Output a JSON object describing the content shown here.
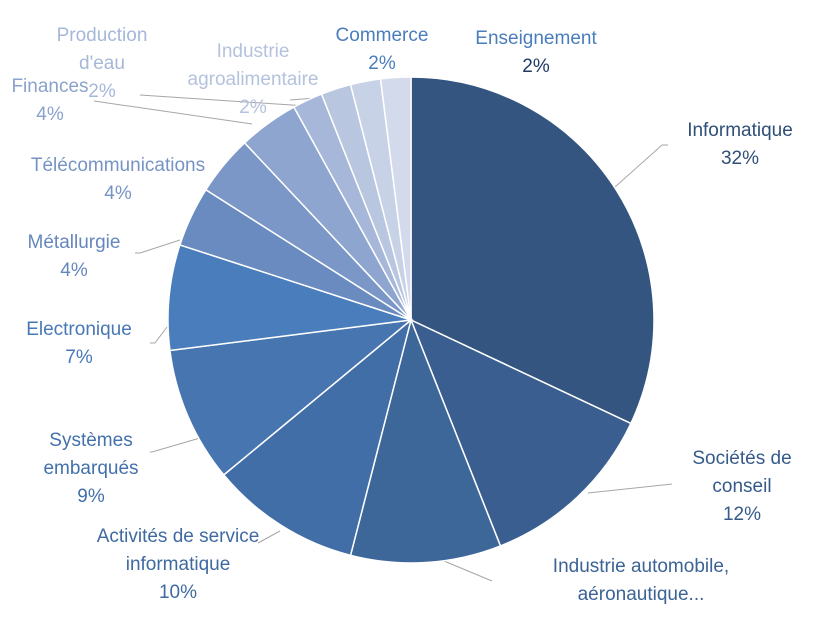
{
  "chart_data": {
    "type": "pie",
    "title": "",
    "legend": "none",
    "slices": [
      {
        "label": [
          "Informatique"
        ],
        "value": 32,
        "pct": "32%",
        "color": "#33557f",
        "text_color": "#2f4f78"
      },
      {
        "label": [
          "Sociétés de",
          "conseil"
        ],
        "value": 12,
        "pct": "12%",
        "color": "#395e8f",
        "text_color": "#365a8a"
      },
      {
        "label": [
          "Industrie automobile,",
          "aéronautique..."
        ],
        "value": 10,
        "pct": "",
        "color": "#3d6699",
        "text_color": "#3b6396"
      },
      {
        "label": [
          "Activités de service",
          "informatique"
        ],
        "value": 10,
        "pct": "10%",
        "color": "#416ea6",
        "text_color": "#3f6aa1"
      },
      {
        "label": [
          "Systèmes",
          "embarqués"
        ],
        "value": 9,
        "pct": "9%",
        "color": "#4675b0",
        "text_color": "#4371ab"
      },
      {
        "label": [
          "Electronique"
        ],
        "value": 7,
        "pct": "7%",
        "color": "#4a7dbc",
        "text_color": "#4878b6"
      },
      {
        "label": [
          "Métallurgie"
        ],
        "value": 4,
        "pct": "4%",
        "color": "#6a8bc0",
        "text_color": "#6687bd"
      },
      {
        "label": [
          "Télécommunications"
        ],
        "value": 4,
        "pct": "4%",
        "color": "#7b97c8",
        "text_color": "#7793c5"
      },
      {
        "label": [
          "Finances"
        ],
        "value": 4,
        "pct": "4%",
        "color": "#8ea5cf",
        "text_color": "#8aa2cc"
      },
      {
        "label": [
          "Production",
          "d'eau"
        ],
        "value": 2,
        "pct": "2%",
        "color": "#a6b7d9",
        "text_color": "#a6b7d9"
      },
      {
        "label": [
          "Industrie",
          "agroalimentaire"
        ],
        "value": 2,
        "pct": "2%",
        "color": "#b9c6e0",
        "text_color": "#b5c2dd"
      },
      {
        "label": [
          "Commerce"
        ],
        "value": 2,
        "pct": "2%",
        "color": "#c8d2e7",
        "text_color": "#4a7dbc"
      },
      {
        "label": [
          "Enseignement"
        ],
        "value": 2,
        "pct": "2%",
        "color": "#d2daeb",
        "text_color": "#4a7dbc",
        "pct_color": "#1f3864"
      }
    ]
  }
}
